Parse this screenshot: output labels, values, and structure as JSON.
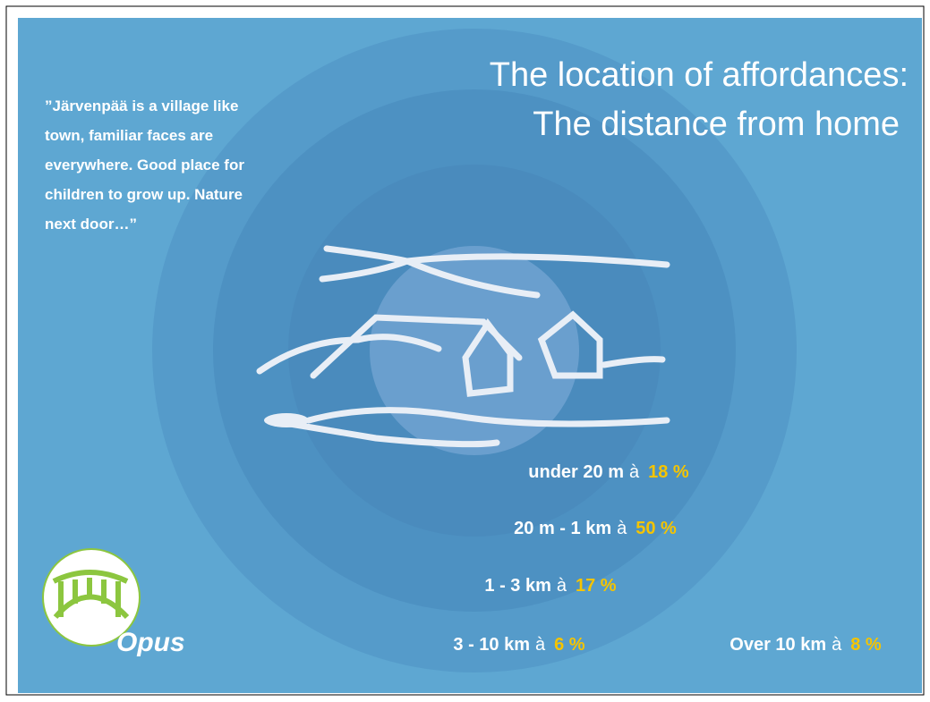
{
  "title": {
    "lines": [
      "The location of affordances:",
      "The distance from home"
    ]
  },
  "quote": {
    "lines": [
      "”Järvenpää is a village like",
      "town, familiar faces are",
      "everywhere. Good place for",
      "children to grow up. Nature",
      "next door…”"
    ]
  },
  "items": [
    {
      "label": "under 20 m",
      "arrow": "à",
      "value": "18 %"
    },
    {
      "label": "20 m - 1 km",
      "arrow": "à",
      "value": "50 %"
    },
    {
      "label": "1 - 3 km",
      "arrow": "à",
      "value": "17 %"
    },
    {
      "label": "3 - 10 km",
      "arrow": "à",
      "value": "6 %"
    },
    {
      "label": "Over 10 km",
      "arrow": "à",
      "value": "8 %"
    }
  ],
  "logo": {
    "text": "Opus"
  }
}
